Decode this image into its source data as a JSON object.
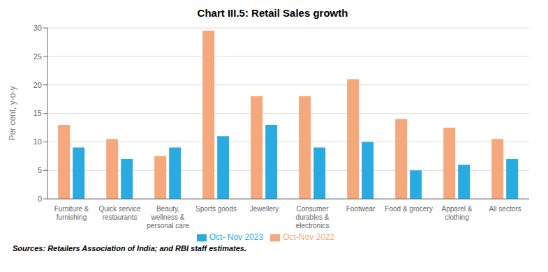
{
  "chart_data": {
    "type": "bar",
    "title": "Chart III.5: Retail Sales growth",
    "categories": [
      "Furniture &\nfurnishing",
      "Quick service\nrestaurants",
      "Beauty,\nwellness &\npersonal care",
      "Sports goods",
      "Jewellery",
      "Consumer\ndurables &\nelectronics",
      "Footwear",
      "Food & grocery",
      "Apparel &\nclothing",
      "All sectors"
    ],
    "series": [
      {
        "name": "Oct-Nov 2022",
        "color": "#F4A87C",
        "values": [
          13.0,
          10.5,
          7.5,
          29.5,
          18.0,
          18.0,
          21.0,
          14.0,
          12.5,
          10.5
        ]
      },
      {
        "name": "Oct- Nov 2023",
        "color": "#29ABE2",
        "values": [
          9.0,
          7.0,
          9.0,
          11.0,
          13.0,
          9.0,
          10.0,
          5.0,
          6.0,
          7.0
        ]
      }
    ],
    "ylabel": "Per cent, y-o-y",
    "ylim": [
      0,
      30
    ],
    "yticks": [
      0,
      5,
      10,
      15,
      20,
      25,
      30
    ],
    "grid": true,
    "legend": "bottom",
    "annotations": [
      "Sources: Retailers Association of India; and RBI staff estimates."
    ]
  }
}
